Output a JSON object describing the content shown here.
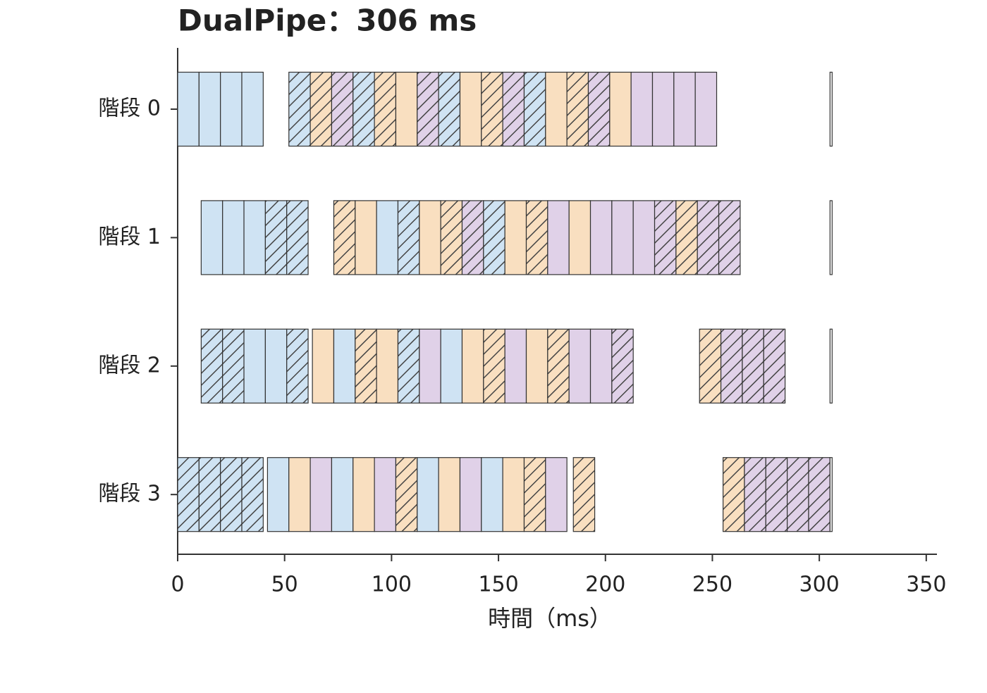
{
  "chart_data": {
    "type": "gantt",
    "title": "DualPipe：306 ms",
    "x_label": "時間（ms）",
    "xlim": [
      0,
      355
    ],
    "xticks": [
      0,
      50,
      100,
      150,
      200,
      250,
      300,
      350
    ],
    "rows": [
      {
        "name": "階段 0",
        "tasks": [
          {
            "start": 0,
            "end": 10,
            "color": "#cfe3f3",
            "hatch": false
          },
          {
            "start": 10,
            "end": 20,
            "color": "#cfe3f3",
            "hatch": false
          },
          {
            "start": 20,
            "end": 30,
            "color": "#cfe3f3",
            "hatch": false
          },
          {
            "start": 30,
            "end": 40,
            "color": "#cfe3f3",
            "hatch": false
          },
          {
            "start": 52,
            "end": 62,
            "color": "#cfe3f3",
            "hatch": true
          },
          {
            "start": 62,
            "end": 72,
            "color": "#f9dfc0",
            "hatch": true
          },
          {
            "start": 72,
            "end": 82,
            "color": "#e0d1e8",
            "hatch": true
          },
          {
            "start": 82,
            "end": 92,
            "color": "#cfe3f3",
            "hatch": true
          },
          {
            "start": 92,
            "end": 102,
            "color": "#f9dfc0",
            "hatch": true
          },
          {
            "start": 102,
            "end": 112,
            "color": "#f9dfc0",
            "hatch": false
          },
          {
            "start": 112,
            "end": 122,
            "color": "#e0d1e8",
            "hatch": true
          },
          {
            "start": 122,
            "end": 132,
            "color": "#cfe3f3",
            "hatch": true
          },
          {
            "start": 132,
            "end": 142,
            "color": "#f9dfc0",
            "hatch": false
          },
          {
            "start": 142,
            "end": 152,
            "color": "#f9dfc0",
            "hatch": true
          },
          {
            "start": 152,
            "end": 162,
            "color": "#e0d1e8",
            "hatch": true
          },
          {
            "start": 162,
            "end": 172,
            "color": "#cfe3f3",
            "hatch": true
          },
          {
            "start": 172,
            "end": 182,
            "color": "#f9dfc0",
            "hatch": false
          },
          {
            "start": 182,
            "end": 192,
            "color": "#f9dfc0",
            "hatch": true
          },
          {
            "start": 192,
            "end": 202,
            "color": "#e0d1e8",
            "hatch": true
          },
          {
            "start": 202,
            "end": 212,
            "color": "#f9dfc0",
            "hatch": false
          },
          {
            "start": 212,
            "end": 222,
            "color": "#e0d1e8",
            "hatch": false
          },
          {
            "start": 222,
            "end": 232,
            "color": "#e0d1e8",
            "hatch": false
          },
          {
            "start": 232,
            "end": 242,
            "color": "#e0d1e8",
            "hatch": false
          },
          {
            "start": 242,
            "end": 252,
            "color": "#e0d1e8",
            "hatch": false
          },
          {
            "start": 305,
            "end": 306,
            "color": "#ffffff",
            "hatch": false
          }
        ]
      },
      {
        "name": "階段 1",
        "tasks": [
          {
            "start": 11,
            "end": 21,
            "color": "#cfe3f3",
            "hatch": false
          },
          {
            "start": 21,
            "end": 31,
            "color": "#cfe3f3",
            "hatch": false
          },
          {
            "start": 31,
            "end": 41,
            "color": "#cfe3f3",
            "hatch": false
          },
          {
            "start": 41,
            "end": 51,
            "color": "#cfe3f3",
            "hatch": true
          },
          {
            "start": 51,
            "end": 61,
            "color": "#cfe3f3",
            "hatch": true
          },
          {
            "start": 73,
            "end": 83,
            "color": "#f9dfc0",
            "hatch": true
          },
          {
            "start": 83,
            "end": 93,
            "color": "#f9dfc0",
            "hatch": false
          },
          {
            "start": 93,
            "end": 103,
            "color": "#cfe3f3",
            "hatch": false
          },
          {
            "start": 103,
            "end": 113,
            "color": "#cfe3f3",
            "hatch": true
          },
          {
            "start": 113,
            "end": 123,
            "color": "#f9dfc0",
            "hatch": false
          },
          {
            "start": 123,
            "end": 133,
            "color": "#f9dfc0",
            "hatch": true
          },
          {
            "start": 133,
            "end": 143,
            "color": "#e0d1e8",
            "hatch": true
          },
          {
            "start": 143,
            "end": 153,
            "color": "#cfe3f3",
            "hatch": true
          },
          {
            "start": 153,
            "end": 163,
            "color": "#f9dfc0",
            "hatch": false
          },
          {
            "start": 163,
            "end": 173,
            "color": "#f9dfc0",
            "hatch": true
          },
          {
            "start": 173,
            "end": 183,
            "color": "#e0d1e8",
            "hatch": false
          },
          {
            "start": 183,
            "end": 193,
            "color": "#f9dfc0",
            "hatch": false
          },
          {
            "start": 193,
            "end": 203,
            "color": "#e0d1e8",
            "hatch": false
          },
          {
            "start": 203,
            "end": 213,
            "color": "#e0d1e8",
            "hatch": false
          },
          {
            "start": 213,
            "end": 223,
            "color": "#e0d1e8",
            "hatch": false
          },
          {
            "start": 223,
            "end": 233,
            "color": "#e0d1e8",
            "hatch": true
          },
          {
            "start": 233,
            "end": 243,
            "color": "#f9dfc0",
            "hatch": true
          },
          {
            "start": 243,
            "end": 253,
            "color": "#e0d1e8",
            "hatch": true
          },
          {
            "start": 253,
            "end": 263,
            "color": "#e0d1e8",
            "hatch": true
          },
          {
            "start": 305,
            "end": 306,
            "color": "#ffffff",
            "hatch": false
          }
        ]
      },
      {
        "name": "階段 2",
        "tasks": [
          {
            "start": 11,
            "end": 21,
            "color": "#cfe3f3",
            "hatch": true
          },
          {
            "start": 21,
            "end": 31,
            "color": "#cfe3f3",
            "hatch": true
          },
          {
            "start": 31,
            "end": 41,
            "color": "#cfe3f3",
            "hatch": false
          },
          {
            "start": 41,
            "end": 51,
            "color": "#cfe3f3",
            "hatch": false
          },
          {
            "start": 51,
            "end": 61,
            "color": "#cfe3f3",
            "hatch": true
          },
          {
            "start": 63,
            "end": 73,
            "color": "#f9dfc0",
            "hatch": false
          },
          {
            "start": 73,
            "end": 83,
            "color": "#cfe3f3",
            "hatch": false
          },
          {
            "start": 83,
            "end": 93,
            "color": "#f9dfc0",
            "hatch": true
          },
          {
            "start": 93,
            "end": 103,
            "color": "#f9dfc0",
            "hatch": false
          },
          {
            "start": 103,
            "end": 113,
            "color": "#cfe3f3",
            "hatch": true
          },
          {
            "start": 113,
            "end": 123,
            "color": "#e0d1e8",
            "hatch": false
          },
          {
            "start": 123,
            "end": 133,
            "color": "#cfe3f3",
            "hatch": false
          },
          {
            "start": 133,
            "end": 143,
            "color": "#f9dfc0",
            "hatch": false
          },
          {
            "start": 143,
            "end": 153,
            "color": "#f9dfc0",
            "hatch": true
          },
          {
            "start": 153,
            "end": 163,
            "color": "#e0d1e8",
            "hatch": false
          },
          {
            "start": 163,
            "end": 173,
            "color": "#f9dfc0",
            "hatch": false
          },
          {
            "start": 173,
            "end": 183,
            "color": "#f9dfc0",
            "hatch": true
          },
          {
            "start": 183,
            "end": 193,
            "color": "#e0d1e8",
            "hatch": false
          },
          {
            "start": 193,
            "end": 203,
            "color": "#e0d1e8",
            "hatch": false
          },
          {
            "start": 203,
            "end": 213,
            "color": "#e0d1e8",
            "hatch": true
          },
          {
            "start": 244,
            "end": 254,
            "color": "#f9dfc0",
            "hatch": true
          },
          {
            "start": 254,
            "end": 264,
            "color": "#e0d1e8",
            "hatch": true
          },
          {
            "start": 264,
            "end": 274,
            "color": "#e0d1e8",
            "hatch": true
          },
          {
            "start": 274,
            "end": 284,
            "color": "#e0d1e8",
            "hatch": true
          },
          {
            "start": 305,
            "end": 306,
            "color": "#ffffff",
            "hatch": false
          }
        ]
      },
      {
        "name": "階段 3",
        "tasks": [
          {
            "start": 0,
            "end": 10,
            "color": "#cfe3f3",
            "hatch": true
          },
          {
            "start": 10,
            "end": 20,
            "color": "#cfe3f3",
            "hatch": true
          },
          {
            "start": 20,
            "end": 30,
            "color": "#cfe3f3",
            "hatch": true
          },
          {
            "start": 30,
            "end": 40,
            "color": "#cfe3f3",
            "hatch": true
          },
          {
            "start": 42,
            "end": 52,
            "color": "#cfe3f3",
            "hatch": false
          },
          {
            "start": 52,
            "end": 62,
            "color": "#f9dfc0",
            "hatch": false
          },
          {
            "start": 62,
            "end": 72,
            "color": "#e0d1e8",
            "hatch": false
          },
          {
            "start": 72,
            "end": 82,
            "color": "#cfe3f3",
            "hatch": false
          },
          {
            "start": 82,
            "end": 92,
            "color": "#f9dfc0",
            "hatch": false
          },
          {
            "start": 92,
            "end": 102,
            "color": "#e0d1e8",
            "hatch": false
          },
          {
            "start": 102,
            "end": 112,
            "color": "#f9dfc0",
            "hatch": true
          },
          {
            "start": 112,
            "end": 122,
            "color": "#cfe3f3",
            "hatch": false
          },
          {
            "start": 122,
            "end": 132,
            "color": "#f9dfc0",
            "hatch": false
          },
          {
            "start": 132,
            "end": 142,
            "color": "#e0d1e8",
            "hatch": false
          },
          {
            "start": 142,
            "end": 152,
            "color": "#cfe3f3",
            "hatch": false
          },
          {
            "start": 152,
            "end": 162,
            "color": "#f9dfc0",
            "hatch": false
          },
          {
            "start": 162,
            "end": 172,
            "color": "#f9dfc0",
            "hatch": true
          },
          {
            "start": 172,
            "end": 182,
            "color": "#e0d1e8",
            "hatch": false
          },
          {
            "start": 185,
            "end": 195,
            "color": "#f9dfc0",
            "hatch": true
          },
          {
            "start": 255,
            "end": 265,
            "color": "#f9dfc0",
            "hatch": true
          },
          {
            "start": 265,
            "end": 275,
            "color": "#e0d1e8",
            "hatch": true
          },
          {
            "start": 275,
            "end": 285,
            "color": "#e0d1e8",
            "hatch": true
          },
          {
            "start": 285,
            "end": 295,
            "color": "#e0d1e8",
            "hatch": true
          },
          {
            "start": 295,
            "end": 305,
            "color": "#e0d1e8",
            "hatch": true
          },
          {
            "start": 305,
            "end": 306,
            "color": "#ffffff",
            "hatch": false
          }
        ]
      }
    ]
  }
}
